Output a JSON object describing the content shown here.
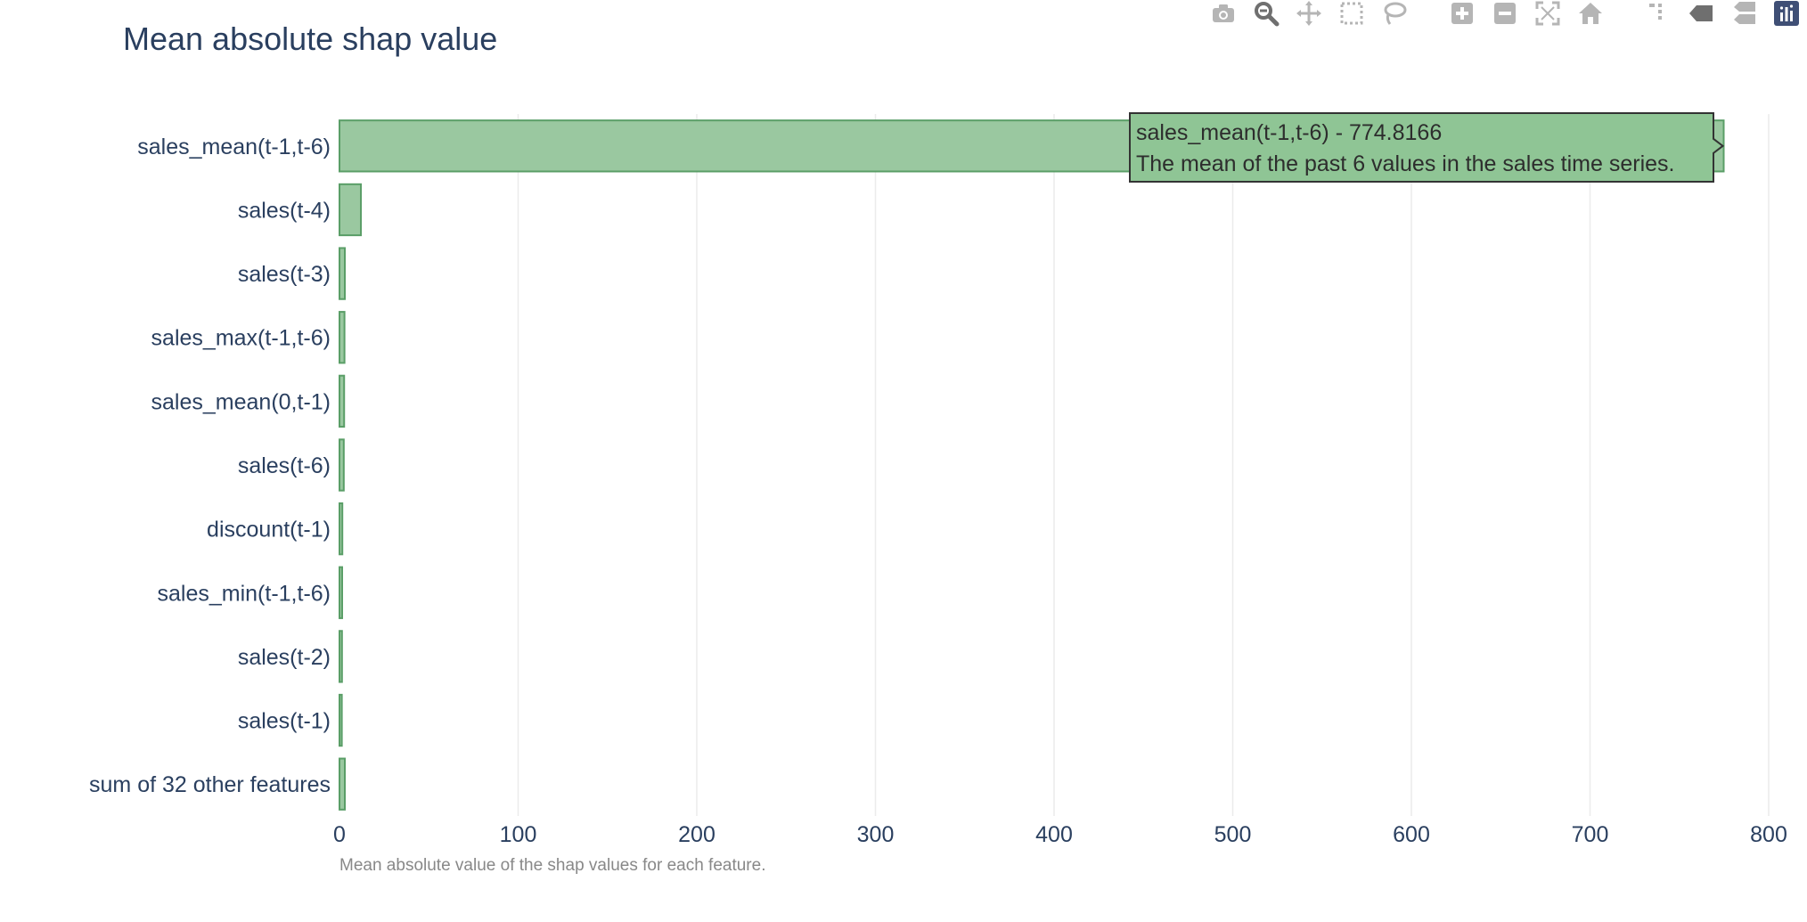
{
  "colors": {
    "bar_fill": "#9ac8a0",
    "bar_stroke": "#5a9e67",
    "grid": "#ebebeb",
    "text": "#2a3f5f",
    "note": "#888888",
    "tooltip_bg": "#8fc595",
    "tooltip_border": "#333333",
    "tooltip_text": "#2d2d2d",
    "modebar_icon": "#b5b5b5",
    "modebar_active": "#6f6f6f",
    "plotly_logo": "#3f4f75"
  },
  "modebar": {
    "buttons": [
      "camera-icon",
      "zoom-icon",
      "pan-icon",
      "box-select-icon",
      "lasso-icon",
      "zoom-in-icon",
      "zoom-out-icon",
      "autoscale-icon",
      "reset-axes-icon",
      "spike-lines-icon",
      "hover-closest-icon",
      "hover-compare-icon",
      "plotly-logo-icon"
    ]
  },
  "chart_data": {
    "type": "bar",
    "orientation": "horizontal",
    "title": "Mean absolute shap value",
    "xlabel": "",
    "ylabel": "",
    "note": "Mean absolute value of the shap values for each feature.",
    "categories": [
      "sales_mean(t-1,t-6)",
      "sales(t-4)",
      "sales(t-3)",
      "sales_max(t-1,t-6)",
      "sales_mean(0,t-1)",
      "sales(t-6)",
      "discount(t-1)",
      "sales_min(t-1,t-6)",
      "sales(t-2)",
      "sales(t-1)",
      "sum of 32 other features"
    ],
    "values": [
      774.8166,
      12,
      3,
      2.8,
      2.6,
      2.4,
      1.6,
      1.5,
      1.4,
      1.3,
      3
    ],
    "xlim": [
      0,
      800
    ],
    "xticks": [
      0,
      100,
      200,
      300,
      400,
      500,
      600,
      700,
      800
    ],
    "grid": true,
    "hover": {
      "line1": "sales_mean(t-1,t-6)  - 774.8166",
      "line2": "The mean of the past 6 values in the sales time series."
    }
  }
}
